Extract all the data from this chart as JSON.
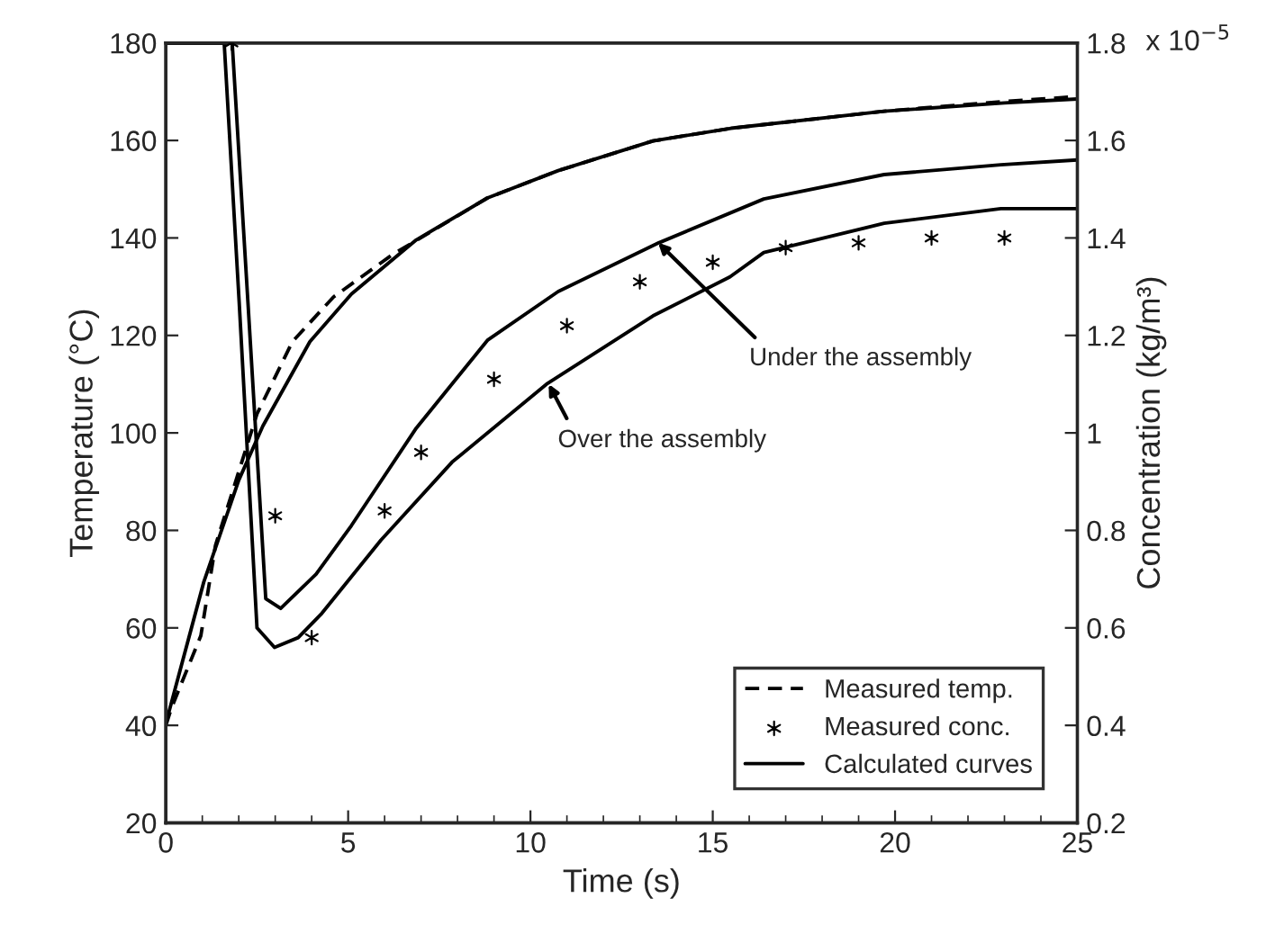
{
  "chart_data": {
    "type": "line",
    "xlabel": "Time (s)",
    "ylabel": "Temperature (°C)",
    "y2label": "Concentration (kg/m³)",
    "xlim": [
      0,
      25
    ],
    "ylim": [
      20,
      180
    ],
    "y2lim": [
      0.2,
      1.8
    ],
    "xticks": [
      0,
      {
        "value": 1,
        "label": null
      },
      {
        "value": 2,
        "label": null
      },
      {
        "value": 3,
        "label": null
      },
      {
        "value": 4,
        "label": null
      },
      5,
      {
        "value": 6,
        "label": null
      },
      {
        "value": 7,
        "label": null
      },
      {
        "value": 8,
        "label": null
      },
      {
        "value": 9,
        "label": null
      },
      10,
      {
        "value": 11,
        "label": null
      },
      {
        "value": 12,
        "label": null
      },
      {
        "value": 13,
        "label": null
      },
      {
        "value": 14,
        "label": null
      },
      15,
      {
        "value": 16,
        "label": null
      },
      {
        "value": 17,
        "label": null
      },
      {
        "value": 18,
        "label": null
      },
      {
        "value": 19,
        "label": null
      },
      20,
      {
        "value": 21,
        "label": null
      },
      {
        "value": 22,
        "label": null
      },
      {
        "value": 23,
        "label": null
      },
      {
        "value": 24,
        "label": null
      },
      25
    ],
    "yticks": [
      20,
      40,
      60,
      80,
      100,
      120,
      140,
      160,
      180
    ],
    "y2ticks": [
      0.2,
      0.4,
      0.6,
      0.8,
      1,
      1.2,
      1.4,
      1.6,
      1.8
    ],
    "legend": "bottom right",
    "series": [
      {
        "name": "Measured temp.",
        "line_style": "dashed",
        "color": "#000000",
        "x": [
          0,
          0.15,
          0.96,
          1.36,
          2.5,
          3.47,
          4.6,
          6.2,
          8.82,
          10.76,
          13.36,
          15.5,
          19.7,
          23,
          25
        ],
        "values": [
          40,
          43.5,
          58.4,
          76.9,
          103.9,
          118.7,
          127.9,
          136.5,
          148.2,
          153.8,
          159.9,
          162.5,
          166,
          168,
          169
        ]
      },
      {
        "name": "Measured conc.",
        "type": "scatter",
        "axis": "y2",
        "marker": "cross",
        "color": "#000000",
        "x": [
          1.8,
          3,
          4,
          6,
          7,
          9,
          11,
          13,
          15,
          17,
          19,
          21,
          23
        ],
        "values": [
          1.8,
          0.83,
          0.58,
          0.84,
          0.96,
          1.11,
          1.22,
          1.31,
          1.35,
          1.38,
          1.39,
          1.4,
          1.4
        ]
      },
      {
        "name": "Calculated curves",
        "line_style": "solid",
        "color": "#000000",
        "x": [
          0,
          1.04,
          2.0,
          2.66,
          3.95,
          5.09,
          6.87,
          8.82,
          10.76,
          13.36,
          15.5,
          19.7,
          23,
          25
        ],
        "values": [
          40.4,
          69.4,
          90.3,
          101.4,
          118.7,
          128.5,
          139.6,
          148.2,
          153.8,
          159.9,
          162.5,
          166,
          167.7,
          168.5
        ]
      },
      {
        "axis": "y2",
        "line_style": "solid",
        "color": "#000000",
        "x": [
          0,
          1.82,
          2.25,
          2.74,
          3.15,
          4.12,
          5.09,
          6.87,
          8.82,
          10.76,
          13.52,
          16.4,
          19.7,
          22.9,
          25
        ],
        "values": [
          1.8,
          1.8,
          1.27,
          0.66,
          0.64,
          0.71,
          0.81,
          1.01,
          1.19,
          1.29,
          1.39,
          1.48,
          1.53,
          1.55,
          1.56
        ]
      },
      {
        "axis": "y2",
        "line_style": "solid",
        "color": "#000000",
        "x": [
          0,
          1.6,
          2.01,
          2.5,
          2.98,
          3.63,
          4.28,
          5.9,
          7.85,
          10.44,
          13.36,
          15.47,
          16.4,
          19.7,
          22.9,
          25
        ],
        "values": [
          1.8,
          1.8,
          1.27,
          0.6,
          0.56,
          0.58,
          0.63,
          0.78,
          0.94,
          1.1,
          1.24,
          1.32,
          1.37,
          1.43,
          1.46,
          1.46
        ]
      }
    ],
    "annotations": [
      "x 10$^{−5}$",
      {
        "text": "Under the assembly",
        "x": 13.5,
        "y": 139
      },
      {
        "text": "Over the assembly",
        "x": 10.5,
        "y": 110
      }
    ]
  }
}
